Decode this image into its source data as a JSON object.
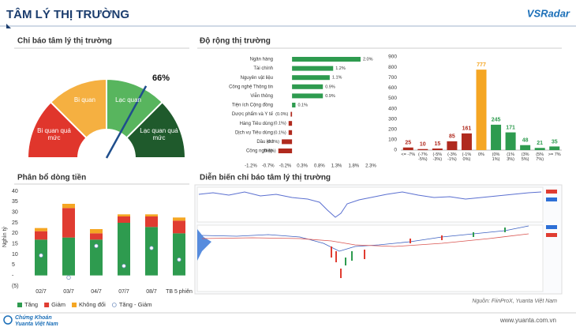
{
  "header": {
    "title": "TÂM LÝ THỊ TRƯỜNG",
    "logo": "VSRadar"
  },
  "chart_data": [
    {
      "type": "gauge",
      "title": "Chỉ báo tâm lý thị trường",
      "segments": [
        {
          "label": "Bi quan quá mức",
          "color": "#e0362c"
        },
        {
          "label": "Bi quan",
          "color": "#f5b041"
        },
        {
          "label": "Lạc quan",
          "color": "#58b55e"
        },
        {
          "label": "Lạc quan quá mức",
          "color": "#1f5a2c"
        }
      ],
      "value": 66,
      "value_label": "66%",
      "ylim": [
        0,
        100
      ],
      "needle_color": "#1f4e8c"
    },
    {
      "type": "hbar",
      "title": "Độ rộng thị trường",
      "categories": [
        "Ngân hàng",
        "Tài chính",
        "Nguyên vật liệu",
        "Công nghệ Thông tin",
        "Viễn thông",
        "Tiện ích Cộng đồng",
        "Dược phẩm và Y tế",
        "Hàng Tiêu dùng",
        "Dịch vụ Tiêu dùng",
        "Dầu khí",
        "Công nghiệp"
      ],
      "values": [
        2.0,
        1.2,
        1.1,
        0.9,
        0.9,
        0.1,
        -0.04,
        -0.1,
        -0.1,
        -0.3,
        -0.4
      ],
      "value_labels": [
        "2.0%",
        "1.2%",
        "1.1%",
        "0.9%",
        "0.9%",
        "0.1%",
        "(0.0%)",
        "(0.1%)",
        "(0.1%)",
        "(0.3%)",
        "(0.4%)"
      ],
      "colors": {
        "positive": "#2e9b4f",
        "negative": "#b02a1e"
      },
      "xlim": [
        -1.2,
        2.3
      ],
      "xticks": [
        {
          "value": -1.2,
          "label": "-1.2%"
        },
        {
          "value": -0.7,
          "label": "-0.7%"
        },
        {
          "value": -0.2,
          "label": "-0.2%"
        },
        {
          "value": 0.3,
          "label": "0.3%"
        },
        {
          "value": 0.8,
          "label": "0.8%"
        },
        {
          "value": 1.3,
          "label": "1.3%"
        },
        {
          "value": 1.8,
          "label": "1.8%"
        },
        {
          "value": 2.3,
          "label": "2.3%"
        }
      ]
    },
    {
      "type": "bar",
      "categories": [
        "<= -7%",
        "(-7% -5%)",
        "(-5% -3%)",
        "(-3% -1%)",
        "(-1% 0%)",
        "0%",
        "(0% 1%)",
        "(1% 3%)",
        "(3% 5%)",
        "(5% 7%)",
        ">= 7%"
      ],
      "values": [
        25,
        10,
        15,
        85,
        161,
        777,
        245,
        171,
        48,
        21,
        35
      ],
      "colors": [
        "#b02a1e",
        "#b02a1e",
        "#b02a1e",
        "#b02a1e",
        "#b02a1e",
        "#f5a623",
        "#2e9b4f",
        "#2e9b4f",
        "#2e9b4f",
        "#2e9b4f",
        "#2e9b4f"
      ],
      "ylim": [
        0,
        900
      ],
      "yticks": [
        0,
        100,
        200,
        300,
        400,
        500,
        600,
        700,
        800,
        900
      ]
    },
    {
      "type": "stacked_bar",
      "title": "Phân bổ dòng tiền",
      "y_label": "Nghìn tỷ",
      "categories": [
        "02/7",
        "03/7",
        "04/7",
        "07/7",
        "08/7",
        "TB 5 phiên"
      ],
      "series": [
        {
          "name": "Tăng",
          "color": "#2e9b4f",
          "values": [
            17,
            18,
            17,
            25,
            23,
            20
          ]
        },
        {
          "name": "Giảm",
          "color": "#e03c31",
          "values": [
            4,
            14,
            3,
            3,
            5,
            6
          ]
        },
        {
          "name": "Không đổi",
          "color": "#f5a623",
          "values": [
            1.5,
            2,
            2,
            1,
            1,
            1.5
          ]
        },
        {
          "name": "Tăng - Giảm",
          "color": "#ffffff",
          "marker": "dot",
          "values": [
            9.5,
            -1,
            14,
            4.5,
            13,
            7.5
          ]
        }
      ],
      "ylim": [
        -5,
        40
      ],
      "yticks": [
        {
          "value": -5,
          "label": "(5)"
        },
        {
          "value": 0,
          "label": "-"
        },
        5,
        10,
        15,
        20,
        25,
        30,
        35,
        40
      ]
    },
    {
      "type": "image",
      "title": "Diễn biến chỉ báo tâm lý thị trường",
      "source": "Nguồn: FiinProX, Yuanta Việt Nam"
    }
  ],
  "footer": {
    "url": "www.yuanta.com.vn",
    "logo_line1": "Chứng Khoán",
    "logo_line2": "Yuanta Việt Nam"
  }
}
